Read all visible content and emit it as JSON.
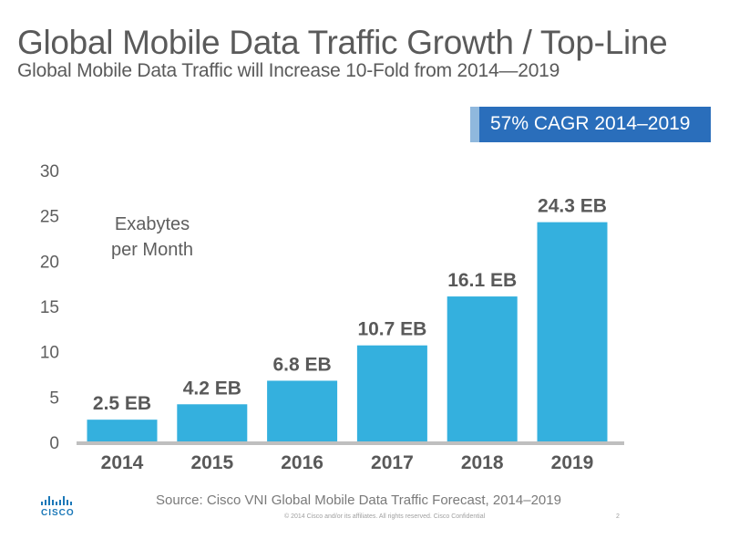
{
  "header": {
    "title": "Global Mobile Data Traffic Growth / Top-Line",
    "subtitle": "Global Mobile Data Traffic will Increase 10-Fold from 2014—2019"
  },
  "callout": {
    "text": "57% CAGR 2014–2019",
    "color": "#2a6ebb",
    "accent_color": "#8fb8dd"
  },
  "chart_data": {
    "type": "bar",
    "title": "",
    "xlabel": "",
    "ylabel": "Exabytes per Month",
    "annotation_lines": [
      "Exabytes",
      "per Month"
    ],
    "categories": [
      "2014",
      "2015",
      "2016",
      "2017",
      "2018",
      "2019"
    ],
    "values": [
      2.5,
      4.2,
      6.8,
      10.7,
      16.1,
      24.3
    ],
    "data_labels": [
      "2.5 EB",
      "4.2 EB",
      "6.8 EB",
      "10.7 EB",
      "16.1 EB",
      "24.3 EB"
    ],
    "yticks": [
      "0",
      "5",
      "10",
      "15",
      "20",
      "25",
      "30"
    ],
    "ylim": [
      0,
      30
    ],
    "grid": false,
    "legend": "none",
    "bar_color": "#34b0de",
    "axis_color": "#bfbfbf"
  },
  "footer": {
    "source": "Source: Cisco VNI  Global Mobile  Data Traffic Forecast, 2014–2019",
    "copyright": "© 2014  Cisco and/or  its affiliates.  All rights reserved.    Cisco Confidential",
    "page_number": "2",
    "logo_text": "CISCO",
    "logo_icon": "cisco-bridge-logo"
  }
}
